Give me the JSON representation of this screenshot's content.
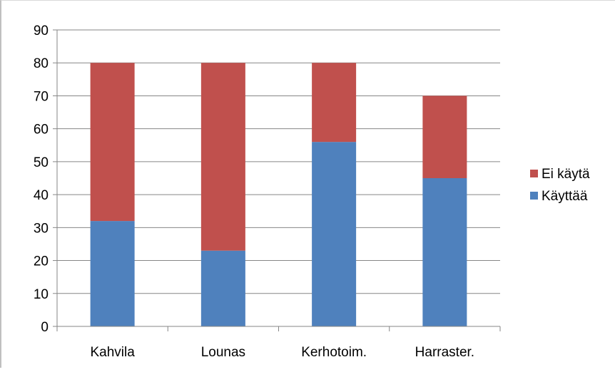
{
  "chart_data": {
    "type": "bar",
    "stacked": true,
    "title": "",
    "xlabel": "",
    "ylabel": "",
    "categories": [
      "Kahvila",
      "Lounas",
      "Kerhotoim.",
      "Harraster."
    ],
    "series": [
      {
        "name": "Käyttää",
        "values": [
          32,
          23,
          56,
          45
        ],
        "color": "#4f81bd"
      },
      {
        "name": "Ei käytä",
        "values": [
          48,
          57,
          24,
          25
        ],
        "color": "#c0504d"
      }
    ],
    "ylim": [
      0,
      90
    ],
    "yticks": [
      0,
      10,
      20,
      30,
      40,
      50,
      60,
      70,
      80,
      90
    ],
    "ytick_labels": [
      "0",
      "10",
      "20",
      "30",
      "40",
      "50",
      "60",
      "70",
      "80",
      "90"
    ],
    "grid": true,
    "legend": {
      "placement": "right",
      "entries": [
        "Ei käytä",
        "Käyttää"
      ]
    }
  }
}
